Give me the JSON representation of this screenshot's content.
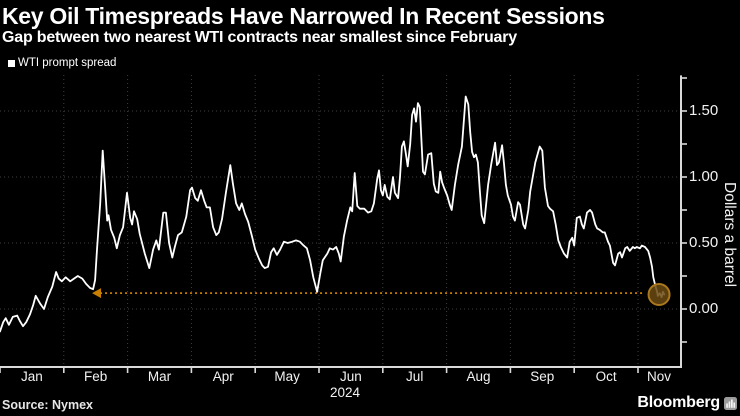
{
  "header": {
    "title": "Key Oil Timespreads Have Narrowed In Recent Sessions",
    "subtitle": "Gap between two nearest WTI contracts near smallest since February"
  },
  "legend": {
    "label": "WTI prompt spread",
    "swatch_color": "#ffffff",
    "position": "top-left"
  },
  "source_label": "Source: Nymex",
  "branding": {
    "logo_text": "Bloomberg",
    "logo_icon": "bloomberg-bars-icon"
  },
  "colors": {
    "background": "#000000",
    "text": "#ffffff",
    "series_line": "#ffffff",
    "grid": "#3f3f3f",
    "axis": "#d9d9d9",
    "annotation_orange": "#c87e00",
    "marker_fill": "#6b4a10",
    "marker_stroke": "#aa781e"
  },
  "chart_data": {
    "type": "line",
    "title": "Key Oil Timespreads Have Narrowed In Recent Sessions",
    "subtitle": "Gap between two nearest WTI contracts near smallest since February",
    "grid": "dotted",
    "legend_position": "top-left",
    "x_axis": {
      "tick_labels": [
        "Jan",
        "Feb",
        "Mar",
        "Apr",
        "May",
        "Jun",
        "Jul",
        "Aug",
        "Sep",
        "Oct",
        "Nov"
      ],
      "year_label": "2024",
      "unit": "months of 2024 (0 = Jan 1)",
      "range": [
        0,
        10.67
      ]
    },
    "y_axis": {
      "label": "Dollars a barrel",
      "side": "right",
      "tick_labels": [
        "1.50",
        "1.00",
        "0.50",
        "0.00"
      ],
      "tick_values": [
        1.5,
        1.0,
        0.5,
        0.0
      ],
      "minor_tick_values": [
        1.75,
        1.25,
        0.75,
        0.25,
        -0.25
      ],
      "grid_values": [
        1.5,
        1.0,
        0.5,
        0.0
      ],
      "range_shown": [
        -0.45,
        1.77
      ]
    },
    "series": [
      {
        "name": "WTI prompt spread",
        "color": "#ffffff",
        "points": [
          [
            0,
            -0.17
          ],
          [
            0.05,
            -0.1
          ],
          [
            0.09,
            -0.07
          ],
          [
            0.14,
            -0.12
          ],
          [
            0.2,
            -0.06
          ],
          [
            0.27,
            -0.05
          ],
          [
            0.31,
            -0.09
          ],
          [
            0.36,
            -0.13
          ],
          [
            0.41,
            -0.1
          ],
          [
            0.47,
            -0.04
          ],
          [
            0.52,
            0.03
          ],
          [
            0.56,
            0.1
          ],
          [
            0.63,
            0.04
          ],
          [
            0.69,
            0.0
          ],
          [
            0.75,
            0.09
          ],
          [
            0.82,
            0.17
          ],
          [
            0.88,
            0.28
          ],
          [
            0.92,
            0.23
          ],
          [
            0.97,
            0.21
          ],
          [
            1.03,
            0.24
          ],
          [
            1.1,
            0.21
          ],
          [
            1.16,
            0.23
          ],
          [
            1.22,
            0.25
          ],
          [
            1.29,
            0.23
          ],
          [
            1.35,
            0.19
          ],
          [
            1.41,
            0.16
          ],
          [
            1.46,
            0.15
          ],
          [
            1.49,
            0.22
          ],
          [
            1.52,
            0.45
          ],
          [
            1.57,
            0.8
          ],
          [
            1.61,
            1.2
          ],
          [
            1.65,
            0.9
          ],
          [
            1.68,
            0.67
          ],
          [
            1.7,
            0.71
          ],
          [
            1.74,
            0.6
          ],
          [
            1.79,
            0.54
          ],
          [
            1.83,
            0.46
          ],
          [
            1.88,
            0.56
          ],
          [
            1.93,
            0.62
          ],
          [
            1.99,
            0.88
          ],
          [
            2.04,
            0.69
          ],
          [
            2.07,
            0.64
          ],
          [
            2.1,
            0.74
          ],
          [
            2.15,
            0.68
          ],
          [
            2.19,
            0.57
          ],
          [
            2.27,
            0.42
          ],
          [
            2.34,
            0.31
          ],
          [
            2.4,
            0.45
          ],
          [
            2.45,
            0.52
          ],
          [
            2.49,
            0.45
          ],
          [
            2.56,
            0.73
          ],
          [
            2.6,
            0.73
          ],
          [
            2.65,
            0.5
          ],
          [
            2.7,
            0.39
          ],
          [
            2.74,
            0.47
          ],
          [
            2.79,
            0.56
          ],
          [
            2.85,
            0.58
          ],
          [
            2.92,
            0.7
          ],
          [
            2.98,
            0.9
          ],
          [
            3.01,
            0.92
          ],
          [
            3.06,
            0.84
          ],
          [
            3.1,
            0.82
          ],
          [
            3.15,
            0.9
          ],
          [
            3.2,
            0.82
          ],
          [
            3.24,
            0.77
          ],
          [
            3.29,
            0.77
          ],
          [
            3.34,
            0.62
          ],
          [
            3.39,
            0.56
          ],
          [
            3.43,
            0.58
          ],
          [
            3.48,
            0.68
          ],
          [
            3.54,
            0.88
          ],
          [
            3.61,
            1.09
          ],
          [
            3.65,
            0.95
          ],
          [
            3.7,
            0.8
          ],
          [
            3.75,
            0.75
          ],
          [
            3.79,
            0.8
          ],
          [
            3.84,
            0.72
          ],
          [
            3.89,
            0.66
          ],
          [
            3.95,
            0.55
          ],
          [
            4.0,
            0.45
          ],
          [
            4.06,
            0.38
          ],
          [
            4.11,
            0.33
          ],
          [
            4.15,
            0.31
          ],
          [
            4.2,
            0.32
          ],
          [
            4.25,
            0.43
          ],
          [
            4.29,
            0.46
          ],
          [
            4.34,
            0.41
          ],
          [
            4.39,
            0.45
          ],
          [
            4.45,
            0.51
          ],
          [
            4.51,
            0.5
          ],
          [
            4.58,
            0.51
          ],
          [
            4.64,
            0.52
          ],
          [
            4.7,
            0.51
          ],
          [
            4.76,
            0.48
          ],
          [
            4.81,
            0.46
          ],
          [
            4.86,
            0.37
          ],
          [
            4.91,
            0.24
          ],
          [
            4.97,
            0.13
          ],
          [
            5.02,
            0.27
          ],
          [
            5.06,
            0.37
          ],
          [
            5.13,
            0.42
          ],
          [
            5.17,
            0.46
          ],
          [
            5.22,
            0.45
          ],
          [
            5.27,
            0.47
          ],
          [
            5.31,
            0.42
          ],
          [
            5.34,
            0.36
          ],
          [
            5.39,
            0.55
          ],
          [
            5.44,
            0.67
          ],
          [
            5.49,
            0.77
          ],
          [
            5.52,
            0.74
          ],
          [
            5.56,
            1.03
          ],
          [
            5.6,
            0.78
          ],
          [
            5.64,
            0.76
          ],
          [
            5.71,
            0.76
          ],
          [
            5.77,
            0.73
          ],
          [
            5.82,
            0.74
          ],
          [
            5.86,
            0.8
          ],
          [
            5.91,
            0.98
          ],
          [
            5.94,
            1.05
          ],
          [
            5.97,
            0.9
          ],
          [
            6.0,
            0.86
          ],
          [
            6.03,
            0.94
          ],
          [
            6.07,
            0.85
          ],
          [
            6.11,
            0.83
          ],
          [
            6.16,
            1.0
          ],
          [
            6.19,
            0.88
          ],
          [
            6.24,
            0.84
          ],
          [
            6.27,
            1.0
          ],
          [
            6.3,
            1.23
          ],
          [
            6.33,
            1.27
          ],
          [
            6.36,
            1.18
          ],
          [
            6.39,
            1.08
          ],
          [
            6.43,
            1.25
          ],
          [
            6.46,
            1.47
          ],
          [
            6.49,
            1.52
          ],
          [
            6.52,
            1.42
          ],
          [
            6.55,
            1.56
          ],
          [
            6.58,
            1.53
          ],
          [
            6.63,
            1.04
          ],
          [
            6.66,
            1.02
          ],
          [
            6.71,
            1.17
          ],
          [
            6.76,
            1.18
          ],
          [
            6.8,
            0.95
          ],
          [
            6.83,
            0.89
          ],
          [
            6.87,
            0.88
          ],
          [
            6.9,
            1.04
          ],
          [
            6.93,
            0.96
          ],
          [
            6.96,
            0.92
          ],
          [
            7.01,
            0.86
          ],
          [
            7.05,
            0.79
          ],
          [
            7.08,
            0.75
          ],
          [
            7.13,
            0.94
          ],
          [
            7.18,
            1.09
          ],
          [
            7.24,
            1.23
          ],
          [
            7.3,
            1.61
          ],
          [
            7.34,
            1.55
          ],
          [
            7.37,
            1.34
          ],
          [
            7.4,
            1.19
          ],
          [
            7.43,
            1.15
          ],
          [
            7.46,
            1.17
          ],
          [
            7.49,
            1.11
          ],
          [
            7.52,
            0.9
          ],
          [
            7.55,
            0.71
          ],
          [
            7.59,
            0.65
          ],
          [
            7.65,
            0.94
          ],
          [
            7.7,
            1.1
          ],
          [
            7.76,
            1.26
          ],
          [
            7.79,
            1.09
          ],
          [
            7.82,
            1.11
          ],
          [
            7.87,
            1.24
          ],
          [
            7.9,
            1.1
          ],
          [
            7.93,
            0.94
          ],
          [
            7.96,
            0.86
          ],
          [
            8.01,
            0.79
          ],
          [
            8.04,
            0.7
          ],
          [
            8.07,
            0.67
          ],
          [
            8.12,
            0.81
          ],
          [
            8.15,
            0.79
          ],
          [
            8.2,
            0.64
          ],
          [
            8.23,
            0.61
          ],
          [
            8.28,
            0.75
          ],
          [
            8.31,
            0.89
          ],
          [
            8.39,
            1.11
          ],
          [
            8.46,
            1.23
          ],
          [
            8.5,
            1.2
          ],
          [
            8.54,
            0.92
          ],
          [
            8.59,
            0.78
          ],
          [
            8.62,
            0.76
          ],
          [
            8.67,
            0.74
          ],
          [
            8.71,
            0.64
          ],
          [
            8.75,
            0.52
          ],
          [
            8.79,
            0.47
          ],
          [
            8.84,
            0.42
          ],
          [
            8.89,
            0.39
          ],
          [
            8.93,
            0.51
          ],
          [
            8.97,
            0.54
          ],
          [
            9.0,
            0.48
          ],
          [
            9.04,
            0.69
          ],
          [
            9.09,
            0.7
          ],
          [
            9.12,
            0.64
          ],
          [
            9.15,
            0.61
          ],
          [
            9.2,
            0.73
          ],
          [
            9.25,
            0.75
          ],
          [
            9.28,
            0.73
          ],
          [
            9.33,
            0.64
          ],
          [
            9.36,
            0.61
          ],
          [
            9.4,
            0.6
          ],
          [
            9.45,
            0.58
          ],
          [
            9.48,
            0.58
          ],
          [
            9.53,
            0.51
          ],
          [
            9.56,
            0.48
          ],
          [
            9.61,
            0.35
          ],
          [
            9.64,
            0.33
          ],
          [
            9.69,
            0.42
          ],
          [
            9.72,
            0.43
          ],
          [
            9.75,
            0.39
          ],
          [
            9.8,
            0.46
          ],
          [
            9.83,
            0.47
          ],
          [
            9.87,
            0.44
          ],
          [
            9.92,
            0.47
          ],
          [
            9.95,
            0.46
          ],
          [
            9.98,
            0.47
          ],
          [
            10.03,
            0.46
          ],
          [
            10.06,
            0.48
          ],
          [
            10.11,
            0.47
          ],
          [
            10.16,
            0.44
          ],
          [
            10.19,
            0.39
          ],
          [
            10.22,
            0.32
          ],
          [
            10.24,
            0.24
          ],
          [
            10.27,
            0.18
          ],
          [
            10.3,
            0.13
          ],
          [
            10.31,
            0.1
          ],
          [
            10.34,
            0.12
          ],
          [
            10.37,
            0.09
          ],
          [
            10.39,
            0.13
          ],
          [
            10.41,
            0.11
          ]
        ]
      }
    ],
    "annotations": {
      "feb_low_reference_line": {
        "style": "dotted",
        "color": "#c87e00",
        "value": 0.12,
        "x_range_months": [
          1.49,
          10.11
        ],
        "arrowhead": "left"
      },
      "latest_point_highlight": {
        "shape": "circle",
        "x_month": 10.33,
        "value": 0.11,
        "fill": "#6b4a10",
        "stroke": "#aa781e"
      }
    }
  }
}
